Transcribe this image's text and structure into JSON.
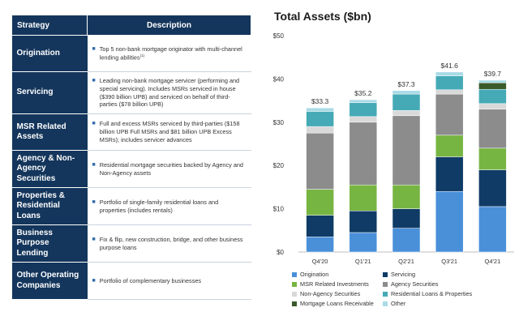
{
  "table": {
    "headers": {
      "strategy": "Strategy",
      "description": "Description"
    },
    "rows": [
      {
        "strategy": "Origination",
        "description": "Top 5 non-bank mortgage originator with multi-channel lending abilities",
        "footnote": "(1)"
      },
      {
        "strategy": "Servicing",
        "description": "Leading non-bank mortgage servicer (performing and special servicing). Includes MSRs serviced in house ($390 billion UPB) and serviced on behalf of third-parties ($78 billion UPB)"
      },
      {
        "strategy": "MSR Related Assets",
        "description": "Full and excess MSRs serviced by third-parties ($158 billion UPB Full MSRs and $81 billion UPB Excess MSRs); includes servicer advances"
      },
      {
        "strategy": "Agency & Non-Agency Securities",
        "description": "Residential mortgage securities backed by Agency and Non-Agency assets"
      },
      {
        "strategy": "Properties & Residential Loans",
        "description": "Portfolio of single-family residential loans and properties (includes rentals)"
      },
      {
        "strategy": "Business Purpose Lending",
        "description": "Fix & flip, new construction, bridge, and other business purpose loans"
      },
      {
        "strategy": "Other Operating Companies",
        "description": "Portfolio of complementary businesses"
      }
    ]
  },
  "chart_data": {
    "type": "bar",
    "stacked": true,
    "title": "Total Assets ($bn)",
    "xlabel": "",
    "ylabel": "",
    "ylim": [
      0,
      50
    ],
    "yticks": [
      0,
      10,
      20,
      30,
      40,
      50
    ],
    "ytick_labels": [
      "$0",
      "$10",
      "$20",
      "$30",
      "$40",
      "$50"
    ],
    "categories": [
      "Q4'20",
      "Q1'21",
      "Q2'21",
      "Q3'21",
      "Q4'21"
    ],
    "totals": [
      33.3,
      35.2,
      37.3,
      41.6,
      39.7
    ],
    "total_labels": [
      "$33.3",
      "$35.2",
      "$37.3",
      "$41.6",
      "$39.7"
    ],
    "grid": false,
    "legend_position": "bottom",
    "series": [
      {
        "name": "Origination",
        "color": "#4a90d9",
        "values": [
          3.5,
          4.5,
          5.5,
          14.0,
          10.5
        ]
      },
      {
        "name": "Servicing",
        "color": "#0f3b66",
        "values": [
          5.0,
          5.0,
          4.5,
          8.0,
          8.5
        ]
      },
      {
        "name": "MSR Related Investments",
        "color": "#77b543",
        "values": [
          6.0,
          6.0,
          5.5,
          5.0,
          5.0
        ]
      },
      {
        "name": "Agency Securities",
        "color": "#8c8c8c",
        "values": [
          13.0,
          14.5,
          16.0,
          9.5,
          9.0
        ]
      },
      {
        "name": "Non-Agency Securities",
        "color": "#d9d9d9",
        "values": [
          1.5,
          1.3,
          1.2,
          1.0,
          1.3
        ]
      },
      {
        "name": "Residential Loans & Properties",
        "color": "#45aab6",
        "values": [
          3.5,
          3.2,
          3.8,
          3.2,
          3.3
        ]
      },
      {
        "name": "Mortgage Loans Receivable",
        "color": "#3a5a2a",
        "values": [
          0,
          0,
          0,
          0,
          1.5
        ]
      },
      {
        "name": "Other",
        "color": "#a9dbe6",
        "values": [
          0.8,
          0.7,
          0.8,
          0.9,
          0.6
        ]
      }
    ]
  }
}
